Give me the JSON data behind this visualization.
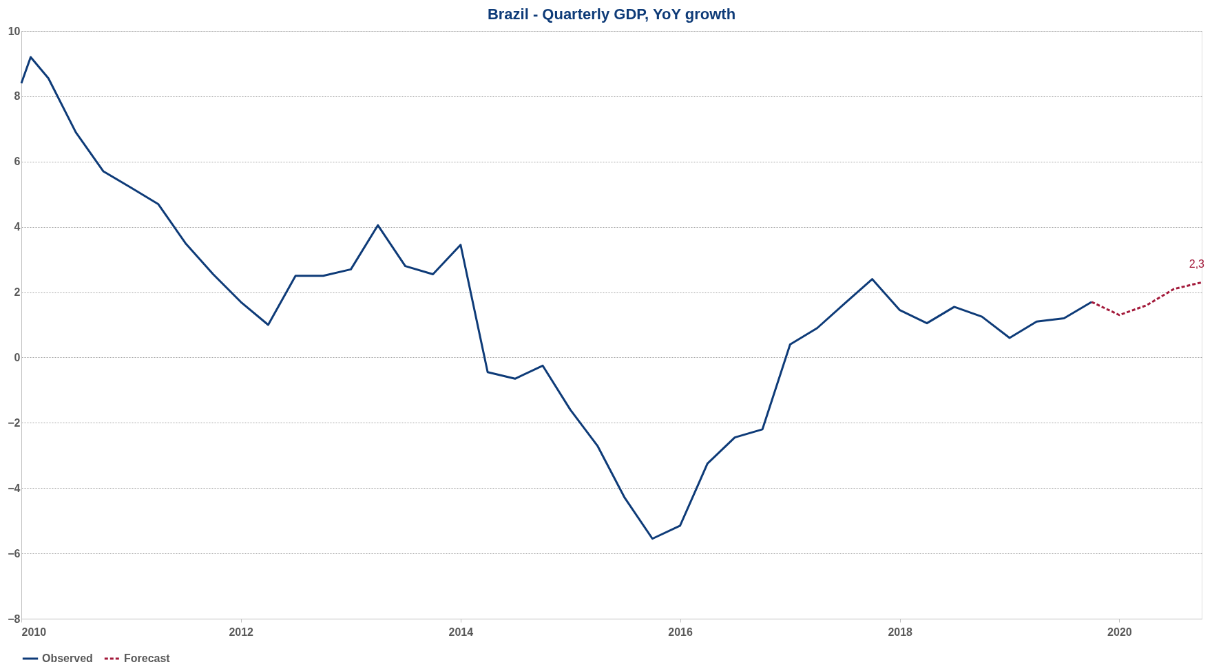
{
  "chart_data": {
    "type": "line",
    "title": "Brazil - Quarterly GDP, YoY growth",
    "series": [
      {
        "name": "Observed",
        "color": "#0e3b78",
        "line_style": "solid",
        "x": [
          "2010-01",
          "2010-02",
          "2010-04",
          "2010-07",
          "2010-10",
          "2011-01",
          "2011-04",
          "2011-07",
          "2011-10",
          "2012-01",
          "2012-04",
          "2012-07",
          "2012-10",
          "2013-01",
          "2013-04",
          "2013-07",
          "2013-10",
          "2014-01",
          "2014-04",
          "2014-07",
          "2014-10",
          "2015-01",
          "2015-04",
          "2015-07",
          "2015-10",
          "2016-01",
          "2016-04",
          "2016-07",
          "2016-10",
          "2017-01",
          "2017-04",
          "2017-07",
          "2017-10",
          "2018-01",
          "2018-04",
          "2018-07",
          "2018-10",
          "2019-01",
          "2019-04",
          "2019-07",
          "2019-10"
        ],
        "values": [
          8.4,
          9.2,
          8.55,
          6.9,
          5.7,
          5.2,
          4.7,
          3.5,
          2.55,
          1.7,
          1.0,
          2.5,
          2.5,
          2.7,
          4.05,
          2.8,
          2.55,
          3.45,
          -0.45,
          -0.65,
          -0.25,
          -1.6,
          -2.7,
          -4.3,
          -5.55,
          -5.15,
          -3.25,
          -2.45,
          -2.2,
          0.4,
          0.9,
          1.65,
          2.4,
          1.45,
          1.05,
          1.55,
          1.25,
          0.6,
          1.1,
          1.2,
          1.7
        ]
      },
      {
        "name": "Forecast",
        "color": "#a3193a",
        "line_style": "dashed",
        "x": [
          "2019-10",
          "2020-01",
          "2020-04",
          "2020-07",
          "2020-10"
        ],
        "values": [
          1.7,
          1.3,
          1.6,
          2.1,
          2.3
        ]
      }
    ],
    "xlim": [
      "2010-01",
      "2020-10"
    ],
    "xticks": [
      "2010",
      "2012",
      "2014",
      "2016",
      "2018",
      "2020"
    ],
    "ylim": [
      -8,
      10
    ],
    "yticks": [
      -8,
      -6,
      -4,
      -2,
      0,
      2,
      4,
      6,
      8,
      10
    ],
    "grid": "y",
    "legend": "bottom",
    "marker": "none",
    "annotations": [
      {
        "text": "2,3",
        "x": "2020-10",
        "y": 2.3
      }
    ]
  }
}
